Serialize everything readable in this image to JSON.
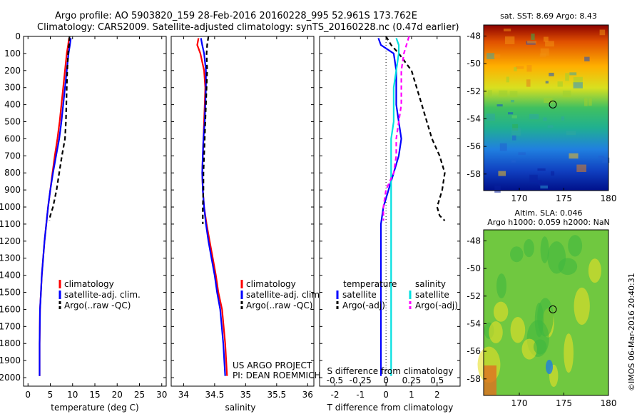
{
  "header": {
    "line1": "Argo profile: AO 5903820_159 28-Feb-2016 20160228_995 52.961S 173.762E",
    "line2": "Climatology: CARS2009. Satellite-adjusted climatology: synTS_20160228.nc (0.47d earlier)"
  },
  "colors": {
    "climatology": "#ff0000",
    "satellite": "#0000ff",
    "argo": "#000000",
    "salinity_satellite": "#00e0e0",
    "salinity_argo": "#ff00ff"
  },
  "credit": {
    "project": "US ARGO PROJECT",
    "pi": "PI: DEAN ROEMMICH"
  },
  "imos": "©IMOS 06-Mar-2016 20:40:31",
  "chart_data": [
    {
      "type": "line",
      "panel": "temperature",
      "xlabel": "temperature (deg C)",
      "ylabel": "",
      "xlim": [
        -1,
        31
      ],
      "ylim": [
        2050,
        0
      ],
      "y_inverted": true,
      "xticks": [
        0,
        5,
        10,
        15,
        20,
        25,
        30
      ],
      "yticks": [
        0,
        100,
        200,
        300,
        400,
        500,
        600,
        700,
        800,
        900,
        1000,
        1100,
        1200,
        1300,
        1400,
        1500,
        1600,
        1700,
        1800,
        1900,
        2000
      ],
      "legend": [
        "climatology",
        "satellite-adj. clim.",
        "Argo(..raw -QC)"
      ],
      "legend_position": "lower-center",
      "series": [
        {
          "name": "climatology",
          "style": "solid",
          "color": "#ff0000",
          "x": [
            9.2,
            9.0,
            8.7,
            8.3,
            7.9,
            7.5,
            7.1,
            6.6,
            6.0,
            5.5,
            5.0,
            4.5,
            4.1,
            3.7,
            3.4,
            3.1,
            2.9,
            2.7,
            2.6,
            2.6
          ],
          "y": [
            10,
            50,
            100,
            200,
            300,
            400,
            500,
            600,
            700,
            800,
            900,
            1000,
            1100,
            1200,
            1300,
            1400,
            1500,
            1600,
            1800,
            1990
          ]
        },
        {
          "name": "satellite-adj. clim.",
          "style": "solid",
          "color": "#0000ff",
          "x": [
            9.6,
            9.4,
            9.1,
            8.7,
            8.3,
            7.9,
            7.5,
            7.0,
            6.3,
            5.6,
            5.0,
            4.5,
            4.1,
            3.7,
            3.4,
            3.1,
            2.9,
            2.7,
            2.6,
            2.6
          ],
          "y": [
            10,
            50,
            100,
            200,
            300,
            400,
            500,
            600,
            700,
            800,
            900,
            1000,
            1100,
            1200,
            1300,
            1400,
            1500,
            1600,
            1800,
            1990
          ]
        },
        {
          "name": "Argo(..raw -QC)",
          "style": "dashed",
          "color": "#000000",
          "x": [
            9.3,
            9.2,
            9.0,
            8.8,
            8.7,
            8.6,
            8.5,
            8.3,
            7.6,
            7.0,
            6.4,
            5.6,
            5.0,
            4.8
          ],
          "y": [
            0,
            50,
            100,
            200,
            300,
            400,
            500,
            600,
            700,
            800,
            900,
            1000,
            1050,
            1080
          ]
        }
      ]
    },
    {
      "type": "line",
      "panel": "salinity",
      "xlabel": "salinity",
      "ylabel": "",
      "xlim": [
        33.8,
        36.1
      ],
      "ylim": [
        2050,
        0
      ],
      "y_inverted": true,
      "xticks": [
        34,
        34.5,
        35,
        35.5,
        36
      ],
      "legend": [
        "climatology",
        "satellite-adj. clim.",
        "Argo(..raw -QC)"
      ],
      "legend_position": "lower-center",
      "series": [
        {
          "name": "climatology",
          "style": "solid",
          "color": "#ff0000",
          "x": [
            34.24,
            34.22,
            34.27,
            34.33,
            34.35,
            34.34,
            34.33,
            34.32,
            34.31,
            34.3,
            34.31,
            34.33,
            34.37,
            34.42,
            34.47,
            34.52,
            34.56,
            34.62,
            34.67,
            34.7
          ],
          "y": [
            10,
            50,
            100,
            200,
            300,
            400,
            500,
            600,
            700,
            800,
            900,
            1000,
            1100,
            1200,
            1300,
            1400,
            1500,
            1600,
            1800,
            1990
          ]
        },
        {
          "name": "satellite-adj. clim.",
          "style": "solid",
          "color": "#0000ff",
          "x": [
            34.28,
            34.3,
            34.33,
            34.36,
            34.36,
            34.35,
            34.34,
            34.32,
            34.31,
            34.3,
            34.31,
            34.33,
            34.36,
            34.4,
            34.45,
            34.5,
            34.54,
            34.59,
            34.64,
            34.67
          ],
          "y": [
            10,
            50,
            100,
            200,
            300,
            400,
            500,
            600,
            700,
            800,
            900,
            1000,
            1100,
            1200,
            1300,
            1400,
            1500,
            1600,
            1800,
            1990
          ]
        },
        {
          "name": "Argo(..raw -QC)",
          "style": "dashed",
          "color": "#000000",
          "x": [
            34.4,
            34.38,
            34.37,
            34.38,
            34.37,
            34.36,
            34.35,
            34.34,
            34.33,
            34.32,
            34.32,
            34.31,
            34.31
          ],
          "y": [
            0,
            50,
            100,
            200,
            300,
            400,
            500,
            600,
            700,
            800,
            900,
            1000,
            1100
          ]
        }
      ]
    },
    {
      "type": "line",
      "panel": "difference",
      "xlabel": "T difference from climatology",
      "top_label": "S difference from climatology",
      "xlim": [
        -2.6,
        2.9
      ],
      "ylim": [
        2050,
        0
      ],
      "y_inverted": true,
      "xticks": [
        -2,
        -1,
        0,
        1,
        2
      ],
      "top_xticks": [
        "-0.5",
        "-0.25",
        "0",
        "0.25",
        "0.5"
      ],
      "legend_groups": [
        {
          "title": "temperature",
          "items": [
            "satellite",
            "Argo(-adj)"
          ]
        },
        {
          "title": "salinity",
          "items": [
            "satellite",
            "Argo(-adj)"
          ]
        }
      ],
      "series": [
        {
          "name": "temperature satellite",
          "style": "solid",
          "color": "#0000ff",
          "x": [
            -0.3,
            -0.2,
            0.3,
            0.4,
            0.4,
            0.4,
            0.5,
            0.6,
            0.5,
            0.3,
            0.1,
            -0.1,
            -0.2,
            -0.2,
            -0.2,
            -0.2,
            -0.2,
            -0.2,
            -0.2,
            -0.2
          ],
          "y": [
            10,
            50,
            100,
            200,
            300,
            400,
            500,
            600,
            700,
            800,
            900,
            1000,
            1100,
            1200,
            1300,
            1400,
            1500,
            1600,
            1800,
            1990
          ]
        },
        {
          "name": "temperature Argo(-adj)",
          "style": "dashed",
          "color": "#000000",
          "x": [
            0.0,
            0.2,
            0.5,
            1.0,
            1.2,
            1.4,
            1.6,
            1.8,
            2.1,
            2.3,
            2.2,
            2.0,
            2.1,
            2.3
          ],
          "y": [
            0,
            50,
            100,
            200,
            300,
            400,
            500,
            600,
            700,
            800,
            900,
            1000,
            1050,
            1080
          ]
        },
        {
          "name": "salinity satellite",
          "style": "solid",
          "color": "#00e0e0",
          "x": [
            0.4,
            0.5,
            0.5,
            0.4,
            0.3,
            0.3,
            0.3,
            0.2,
            0.2,
            0.2,
            0.2,
            0.2,
            0.2,
            0.2,
            0.2,
            0.2,
            0.2,
            0.2,
            0.2,
            0.2
          ],
          "y": [
            10,
            50,
            100,
            200,
            300,
            400,
            500,
            600,
            700,
            800,
            900,
            1000,
            1100,
            1200,
            1300,
            1400,
            1500,
            1600,
            1800,
            1990
          ]
        },
        {
          "name": "salinity Argo(-adj)",
          "style": "dashed",
          "color": "#ff00ff",
          "x": [
            0.9,
            0.8,
            0.7,
            0.6,
            0.6,
            0.6,
            0.5,
            0.4,
            0.4,
            0.3,
            0.0,
            -0.1,
            -0.1
          ],
          "y": [
            0,
            50,
            100,
            200,
            300,
            400,
            500,
            600,
            700,
            800,
            900,
            1000,
            1080
          ]
        }
      ]
    },
    {
      "type": "heatmap",
      "panel": "sst-map",
      "title": "sat. SST: 8.69 Argo: 8.43",
      "xticks": [
        170,
        175,
        180
      ],
      "xlim": [
        166,
        180
      ],
      "yticks": [
        -48,
        -50,
        -52,
        -54,
        -56,
        -58
      ],
      "ylim": [
        -59.2,
        -47.2
      ],
      "marker": {
        "lon": 173.762,
        "lat": -52.961
      }
    },
    {
      "type": "heatmap",
      "panel": "sla-map",
      "title": "Altim. SLA: 0.046",
      "subtitle": "Argo h1000: 0.059 h2000: NaN",
      "xticks": [
        170,
        175,
        180
      ],
      "xlim": [
        166,
        180
      ],
      "yticks": [
        -48,
        -50,
        -52,
        -54,
        -56,
        -58
      ],
      "ylim": [
        -59.2,
        -47.2
      ],
      "marker": {
        "lon": 173.762,
        "lat": -52.961
      }
    }
  ]
}
